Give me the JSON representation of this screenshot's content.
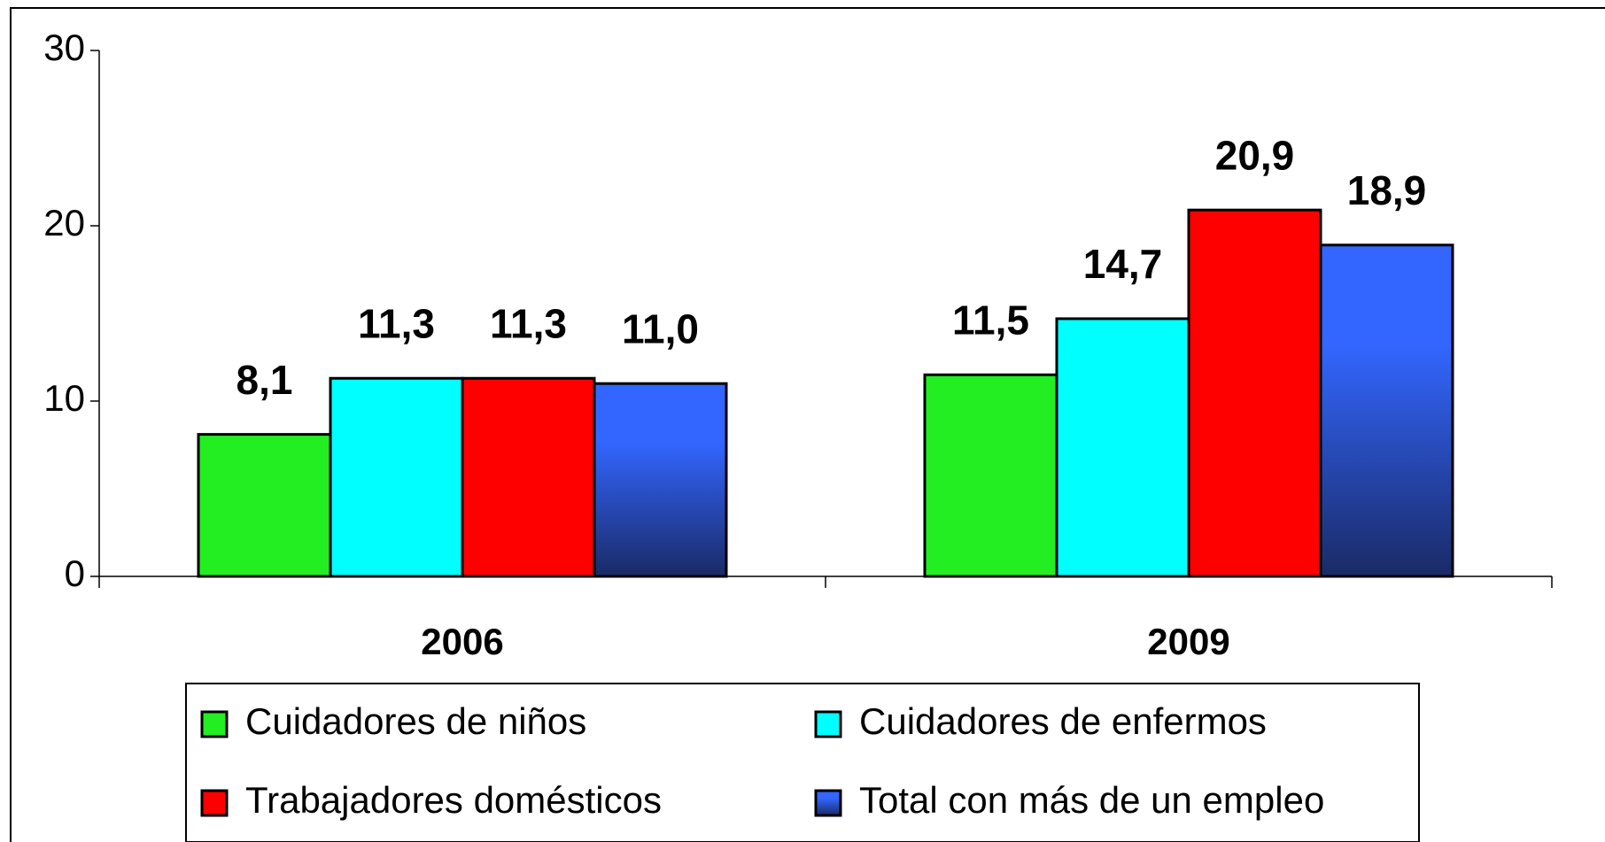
{
  "chart_data": {
    "type": "bar",
    "categories": [
      "2006",
      "2009"
    ],
    "series": [
      {
        "name": "Cuidadores de niños",
        "color": "#22ee22",
        "values": [
          8.1,
          11.5
        ],
        "value_labels": [
          "8,1",
          "11,5"
        ]
      },
      {
        "name": "Cuidadores de enfermos",
        "color": "#00ffff",
        "values": [
          11.3,
          14.7
        ],
        "value_labels": [
          "11,3",
          "14,7"
        ]
      },
      {
        "name": "Trabajadores domésticos",
        "color": "#ff0000",
        "values": [
          11.3,
          20.9
        ],
        "value_labels": [
          "11,3",
          "20,9"
        ]
      },
      {
        "name": "Total con más de un empleo",
        "color": "#3366ff",
        "gradient_to": "#1a2a66",
        "values": [
          11.0,
          18.9
        ],
        "value_labels": [
          "11,0",
          "18,9"
        ]
      }
    ],
    "ylim": [
      0,
      30
    ],
    "yticks": [
      0,
      10,
      20,
      30
    ],
    "grid": false,
    "legend": "bottom"
  }
}
